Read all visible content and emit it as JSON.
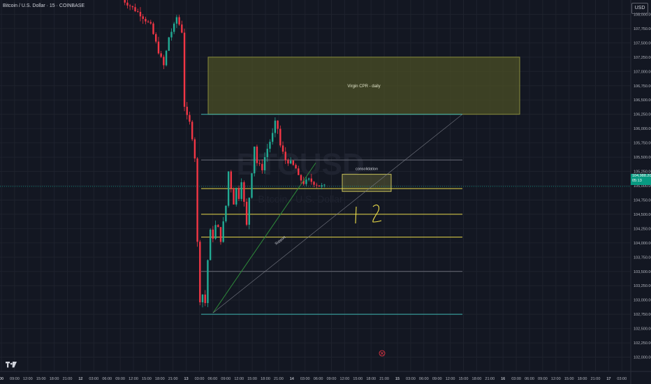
{
  "header": {
    "title": "Bitcoin / U.S. Dollar · 15 · COINBASE",
    "currency_button": "USD"
  },
  "last_price": {
    "value": "104,988.20",
    "countdown": "05:13"
  },
  "colors": {
    "background": "#131722",
    "grid": "#1e222d",
    "axis_text": "#b2b5be",
    "candle_up": "#22ab94",
    "candle_down": "#f23645",
    "zone_fill": "#4b4f25",
    "zone_border": "#8a8e3c",
    "yellow_line": "#e8d84a",
    "teal_line": "#3fb6b0",
    "gray_line": "#6a6d78",
    "support_line": "#2e8b3a"
  },
  "chart_data": {
    "type": "candlestick",
    "symbol": "Bitcoin / U.S. Dollar",
    "exchange": "COINBASE",
    "interval": "15",
    "y_axis": {
      "ylim": [
        101750,
        108250
      ],
      "ticks": [
        "102,000.00",
        "102,250.00",
        "102,500.00",
        "102,750.00",
        "103,000.00",
        "103,250.00",
        "103,500.00",
        "103,750.00",
        "104,000.00",
        "104,250.00",
        "104,500.00",
        "104,750.00",
        "105,000.00",
        "105,250.00",
        "105,500.00",
        "105,750.00",
        "106,000.00",
        "106,250.00",
        "106,500.00",
        "106,750.00",
        "107,000.00",
        "107,250.00",
        "107,500.00",
        "107,750.00",
        "108,000.00"
      ]
    },
    "x_axis": {
      "ticks": [
        "00",
        "09:00",
        "12:00",
        "15:00",
        "18:00",
        "21:00",
        "12",
        "03:00",
        "06:00",
        "09:00",
        "12:00",
        "15:00",
        "18:00",
        "21:00",
        "13",
        "03:00",
        "06:00",
        "09:00",
        "12:00",
        "15:00",
        "18:00",
        "21:00",
        "14",
        "03:00",
        "06:00",
        "09:00",
        "12:00",
        "15:00",
        "18:00",
        "21:00",
        "15",
        "03:00",
        "06:00",
        "09:00",
        "12:00",
        "15:00",
        "18:00",
        "21:00",
        "16",
        "03:00",
        "06:00",
        "09:00",
        "12:00",
        "15:00",
        "18:00",
        "21:00",
        "17",
        "03:00"
      ]
    },
    "price_path": [
      [
        0,
        108300
      ],
      [
        4,
        108150
      ],
      [
        8,
        108000
      ],
      [
        12,
        107800
      ],
      [
        15,
        107350
      ],
      [
        17,
        107100
      ],
      [
        19,
        107600
      ],
      [
        21,
        107800
      ],
      [
        22,
        107950
      ],
      [
        24,
        107700
      ],
      [
        25,
        106400
      ],
      [
        26,
        106200
      ],
      [
        27,
        106100
      ],
      [
        28,
        105850
      ],
      [
        29,
        105500
      ],
      [
        30,
        104000
      ],
      [
        31,
        103000
      ],
      [
        32,
        103100
      ],
      [
        33,
        102950
      ],
      [
        34,
        103700
      ],
      [
        35,
        104200
      ],
      [
        36,
        104100
      ],
      [
        37,
        104300
      ],
      [
        38,
        104250
      ],
      [
        39,
        104050
      ],
      [
        41,
        104650
      ],
      [
        42,
        105250
      ],
      [
        44,
        104700
      ],
      [
        45,
        104950
      ],
      [
        46,
        104800
      ],
      [
        47,
        105100
      ],
      [
        48,
        104700
      ],
      [
        49,
        104300
      ],
      [
        50,
        104800
      ],
      [
        52,
        105700
      ],
      [
        53,
        105400
      ],
      [
        55,
        105300
      ],
      [
        56,
        105500
      ],
      [
        57,
        105650
      ],
      [
        59,
        105900
      ],
      [
        60,
        106100
      ],
      [
        61,
        106000
      ],
      [
        62,
        105700
      ],
      [
        64,
        105450
      ],
      [
        66,
        105400
      ],
      [
        67,
        105350
      ],
      [
        68,
        105300
      ],
      [
        69,
        105150
      ],
      [
        71,
        105050
      ],
      [
        73,
        105100
      ],
      [
        75,
        105050
      ],
      [
        77,
        105000
      ],
      [
        78,
        104988
      ]
    ],
    "total_bars": 79,
    "current_price": 104988.2,
    "zones": [
      {
        "label": "Virgin CPR - daily",
        "y_top": 107250,
        "y_bottom": 106250
      },
      {
        "label": "consolidation",
        "y_top": 105200,
        "y_bottom": 104900
      }
    ],
    "horizontal_levels": [
      {
        "value": 106250,
        "color": "teal"
      },
      {
        "value": 105450,
        "color": "gray"
      },
      {
        "value": 104950,
        "color": "yellow"
      },
      {
        "value": 104500,
        "color": "yellow"
      },
      {
        "value": 104100,
        "color": "yellow"
      },
      {
        "value": 103500,
        "color": "gray"
      },
      {
        "value": 102750,
        "color": "teal"
      }
    ],
    "annotations": [
      {
        "text": "Support",
        "type": "trendline"
      },
      {
        "text": "1",
        "type": "handwritten"
      },
      {
        "text": "2",
        "type": "handwritten"
      }
    ],
    "watermark": [
      "BTCUSD",
      "Bitcoin / U.S. Dollar"
    ]
  }
}
